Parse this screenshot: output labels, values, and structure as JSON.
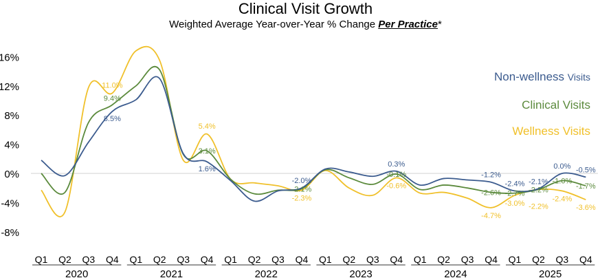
{
  "chart_data": {
    "type": "line",
    "title": "Clinical Visit Growth",
    "subtitle": "Weighted Average Year-over-Year % Change",
    "subtitle_emphasis": "Per Practice",
    "subtitle_suffix": "*",
    "years": [
      "2020",
      "2021",
      "2022",
      "2023",
      "2024",
      "2025"
    ],
    "quarters": [
      "Q1",
      "Q2",
      "Q3",
      "Q4"
    ],
    "ylim": [
      -8,
      16
    ],
    "yticks": [
      "16%",
      "12%",
      "8%",
      "4%",
      "0%",
      "-4%",
      "-8%"
    ],
    "ytick_values": [
      16,
      12,
      8,
      4,
      0,
      -4,
      -8
    ],
    "grid": false,
    "legend_placement": "right",
    "series": [
      {
        "name": "Non-wellness",
        "name_suffix": "Visits",
        "color": "#3b5b8e",
        "values": [
          1.8,
          -0.3,
          4.3,
          8.5,
          10.1,
          13.0,
          2.7,
          1.6,
          -1.0,
          -3.8,
          -2.4,
          -2.0,
          0.6,
          0.2,
          -0.4,
          0.3,
          -1.6,
          -0.7,
          -0.9,
          -1.2,
          -2.4,
          -2.1,
          0.0,
          -0.5
        ],
        "labels": [
          null,
          null,
          null,
          "8.5%",
          null,
          null,
          null,
          "1.6%",
          null,
          null,
          null,
          "-2.0%",
          null,
          null,
          null,
          "0.3%",
          null,
          null,
          null,
          "-1.2%",
          "-2.4%",
          "-2.1%",
          "0.0%",
          "-0.5%"
        ]
      },
      {
        "name": "Clinical Visits",
        "color": "#5b8a3c",
        "values": [
          0.0,
          -2.6,
          7.0,
          9.4,
          12.0,
          14.2,
          2.6,
          3.1,
          -0.8,
          -2.8,
          -2.3,
          -2.1,
          0.5,
          -0.6,
          -1.5,
          -0.1,
          -2.2,
          -1.6,
          -2.0,
          -2.6,
          -2.7,
          -2.2,
          -1.0,
          -1.7
        ],
        "labels": [
          null,
          null,
          null,
          "9.4%",
          null,
          null,
          null,
          "3.1%",
          null,
          null,
          null,
          "-2.1%",
          null,
          null,
          null,
          "-0.1%",
          null,
          null,
          null,
          "-2.6%",
          "-2.7%",
          "-2.2%",
          "-1.0%",
          "-1.7%"
        ]
      },
      {
        "name": "Wellness Visits",
        "color": "#f0c02a",
        "values": [
          -2.3,
          -5.3,
          11.8,
          11.0,
          16.8,
          15.5,
          1.8,
          5.4,
          -0.8,
          -1.3,
          -1.7,
          -2.3,
          0.4,
          -2.0,
          -3.0,
          -0.6,
          -2.7,
          -2.6,
          -3.4,
          -4.7,
          -3.0,
          -2.2,
          -2.4,
          -3.6
        ],
        "labels": [
          null,
          null,
          null,
          "11.0%",
          null,
          null,
          null,
          "5.4%",
          null,
          null,
          null,
          "-2.3%",
          null,
          null,
          null,
          "-0.6%",
          null,
          null,
          null,
          "-4.7%",
          "-3.0%",
          "-2.2%",
          "-2.4%",
          "-3.6%"
        ]
      }
    ]
  }
}
